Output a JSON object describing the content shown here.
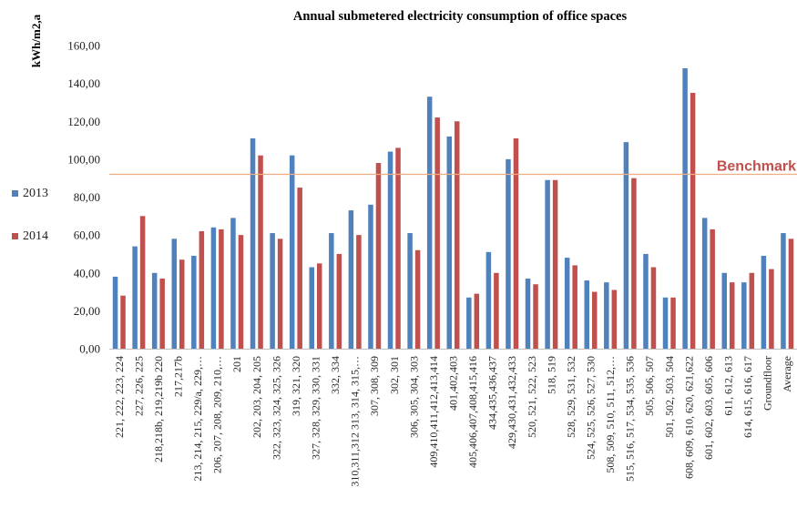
{
  "chart_data": {
    "type": "bar",
    "title": "Annual submetered electricity consumption of office spaces",
    "ylabel": "kWh/m2,a",
    "xlabel": "",
    "ylim": [
      0,
      160
    ],
    "yticks": [
      "0,00",
      "20,00",
      "40,00",
      "60,00",
      "80,00",
      "100,00",
      "120,00",
      "140,00",
      "160,00"
    ],
    "legend_position": "left",
    "grid": false,
    "categories": [
      "221, 222, 223, 224",
      "227, 226, 225",
      "218,218b, 219,219b 220",
      "217,217b",
      "213, 214, 215, 229/a, 229,…",
      "206, 207, 208, 209, 210,…",
      "201",
      "202, 203, 204, 205",
      "322, 323, 324, 325, 326",
      "319, 321, 320",
      "327, 328, 329, 330, 331",
      "332, 334",
      "310,311,312 313, 314, 315,…",
      "307, 308, 309",
      "302, 301",
      "306, 305, 304, 303",
      "409,410,411,412,413,414",
      "401,402,403",
      "405,406,407,408,415,416",
      "434,435,436,437",
      "429,430,431,432,433",
      "520, 521, 522, 523",
      "518, 519",
      "528, 529, 531, 532",
      "524, 525, 526, 527, 530",
      "508, 509, 510, 511, 512,…",
      "515, 516, 517, 534, 535, 536",
      "505, 506, 507",
      "501, 502, 503, 504",
      "608, 609, 610, 620, 621,622",
      "601, 602, 603, 605, 606",
      "611, 612, 613",
      "614, 615, 616, 617",
      "Groundfloor",
      "Average"
    ],
    "series": [
      {
        "name": "2013",
        "color": "#4f81bd",
        "values": [
          38,
          54,
          40,
          58,
          49,
          64,
          69,
          111,
          61,
          102,
          43,
          61,
          73,
          76,
          104,
          61,
          133,
          112,
          27,
          51,
          100,
          37,
          89,
          48,
          36,
          35,
          109,
          50,
          27,
          148,
          69,
          40,
          35,
          49,
          61
        ]
      },
      {
        "name": "2014",
        "color": "#c0504d",
        "values": [
          28,
          70,
          37,
          47,
          62,
          63,
          60,
          102,
          58,
          85,
          45,
          50,
          60,
          98,
          106,
          52,
          122,
          120,
          29,
          40,
          111,
          34,
          89,
          44,
          30,
          31,
          90,
          43,
          27,
          135,
          63,
          35,
          40,
          42,
          58
        ]
      }
    ],
    "benchmark": {
      "label": "Benchmark",
      "value": 92,
      "color": "#f0ad80",
      "label_color": "#c0504d"
    }
  }
}
